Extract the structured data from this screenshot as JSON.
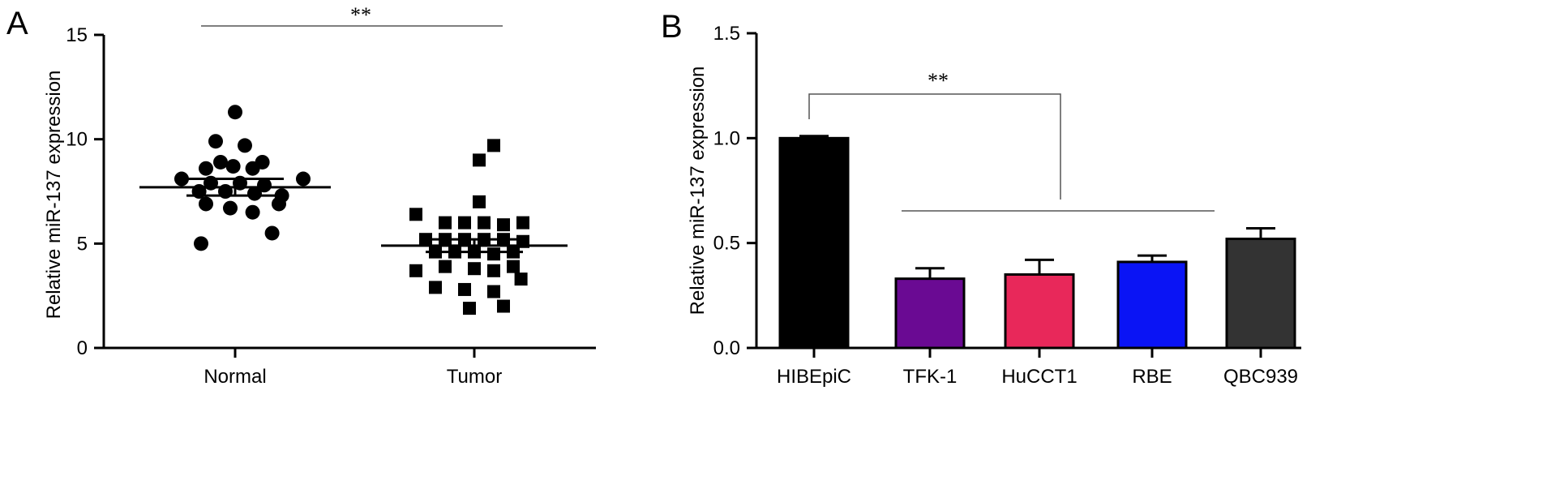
{
  "chart_data": [
    {
      "panel": "A",
      "type": "scatter",
      "ylabel": "Relative miR-137 expression",
      "ylim": [
        0,
        15
      ],
      "yticks": [
        "0",
        "5",
        "10",
        "15"
      ],
      "categories": [
        "Normal",
        "Tumor"
      ],
      "significance": "**",
      "series": [
        {
          "category": "Normal",
          "marker": "circle",
          "mean": 7.7,
          "sem": [
            7.3,
            8.1
          ],
          "points": [
            {
              "x": 0.0,
              "y": 11.3
            },
            {
              "x": -0.2,
              "y": 9.9
            },
            {
              "x": 0.1,
              "y": 9.7
            },
            {
              "x": -0.15,
              "y": 8.9
            },
            {
              "x": 0.28,
              "y": 8.9
            },
            {
              "x": -0.3,
              "y": 8.6
            },
            {
              "x": -0.02,
              "y": 8.7
            },
            {
              "x": 0.18,
              "y": 8.6
            },
            {
              "x": -0.55,
              "y": 8.1
            },
            {
              "x": 0.7,
              "y": 8.1
            },
            {
              "x": -0.25,
              "y": 7.9
            },
            {
              "x": 0.05,
              "y": 7.9
            },
            {
              "x": 0.3,
              "y": 7.8
            },
            {
              "x": -0.37,
              "y": 7.5
            },
            {
              "x": -0.1,
              "y": 7.5
            },
            {
              "x": 0.2,
              "y": 7.4
            },
            {
              "x": 0.48,
              "y": 7.3
            },
            {
              "x": -0.3,
              "y": 6.9
            },
            {
              "x": 0.45,
              "y": 6.9
            },
            {
              "x": -0.05,
              "y": 6.7
            },
            {
              "x": 0.18,
              "y": 6.5
            },
            {
              "x": -0.35,
              "y": 5.0
            },
            {
              "x": 0.38,
              "y": 5.5
            }
          ]
        },
        {
          "category": "Tumor",
          "marker": "square",
          "mean": 4.9,
          "sem": [
            4.6,
            5.2
          ],
          "points": [
            {
              "x": 0.2,
              "y": 9.7
            },
            {
              "x": 0.05,
              "y": 9.0
            },
            {
              "x": 0.05,
              "y": 7.0
            },
            {
              "x": -0.6,
              "y": 6.4
            },
            {
              "x": -0.3,
              "y": 6.0
            },
            {
              "x": -0.1,
              "y": 6.0
            },
            {
              "x": 0.1,
              "y": 6.0
            },
            {
              "x": 0.3,
              "y": 5.9
            },
            {
              "x": 0.5,
              "y": 6.0
            },
            {
              "x": -0.5,
              "y": 5.2
            },
            {
              "x": -0.3,
              "y": 5.2
            },
            {
              "x": -0.1,
              "y": 5.2
            },
            {
              "x": 0.1,
              "y": 5.2
            },
            {
              "x": 0.3,
              "y": 5.2
            },
            {
              "x": 0.5,
              "y": 5.1
            },
            {
              "x": -0.4,
              "y": 4.6
            },
            {
              "x": -0.2,
              "y": 4.6
            },
            {
              "x": 0.0,
              "y": 4.6
            },
            {
              "x": 0.2,
              "y": 4.5
            },
            {
              "x": 0.4,
              "y": 4.6
            },
            {
              "x": -0.6,
              "y": 3.7
            },
            {
              "x": -0.3,
              "y": 3.9
            },
            {
              "x": 0.0,
              "y": 3.8
            },
            {
              "x": 0.2,
              "y": 3.7
            },
            {
              "x": 0.4,
              "y": 3.9
            },
            {
              "x": 0.48,
              "y": 3.3
            },
            {
              "x": -0.4,
              "y": 2.9
            },
            {
              "x": -0.1,
              "y": 2.8
            },
            {
              "x": 0.2,
              "y": 2.7
            },
            {
              "x": -0.05,
              "y": 1.9
            },
            {
              "x": 0.3,
              "y": 2.0
            }
          ]
        }
      ]
    },
    {
      "panel": "B",
      "type": "bar",
      "ylabel": "Relative miR-137 expression",
      "ylim": [
        0,
        1.5
      ],
      "yticks": [
        "0.0",
        "0.5",
        "1.0",
        "1.5"
      ],
      "categories": [
        "HIBEpiC",
        "TFK-1",
        "HuCCT1",
        "RBE",
        "QBC939"
      ],
      "values": [
        1.0,
        0.33,
        0.35,
        0.41,
        0.52
      ],
      "errors": [
        0.01,
        0.05,
        0.07,
        0.03,
        0.05
      ],
      "colors": [
        "#000000",
        "#6a0a93",
        "#e8285a",
        "#0a14f5",
        "#333333"
      ],
      "significance": "**"
    }
  ],
  "panels": {
    "a": {
      "letter": "A"
    },
    "b": {
      "letter": "B"
    }
  }
}
